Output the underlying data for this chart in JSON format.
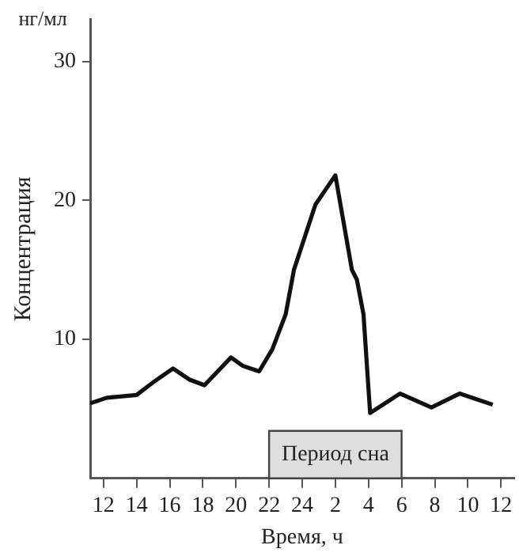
{
  "chart_data": {
    "type": "line",
    "xlabel": "Время, ч",
    "ylabel": "Концентрация",
    "annotations": [
      "нг/мл"
    ],
    "x": [
      "--01-01T11:12",
      "--01-01T12:12",
      "--01-01T14:00",
      "--01-01T15:06",
      "--01-01T16:12",
      "--01-01T17:12",
      "--01-01T18:06",
      "--01-01T19:42",
      "--01-01T20:24",
      "--01-01T21:24",
      "--01-01T22:12",
      "--01-01T23:00",
      "--01-01T23:30",
      "--01-02T00:48",
      "--01-02T02:00",
      "--01-02T03:00",
      "--01-02T03:18",
      "--01-02T03:42",
      "--01-02T03:54",
      "--01-02T04:06",
      "--01-02T05:54",
      "--01-02T07:48",
      "--01-02T09:30",
      "--01-02T11:30"
    ],
    "series": [
      {
        "color": "#111111",
        "values": [
          5.4,
          5.8,
          6,
          7,
          7.9,
          7.1,
          6.7,
          8.7,
          8.1,
          7.7,
          9.3,
          11.8,
          15,
          19.7,
          21.8,
          15,
          14.3,
          11.8,
          8.2,
          4.7,
          6.1,
          5.1,
          6.1,
          5.3
        ]
      }
    ],
    "xlim": [
      "--01-01T11:12",
      "--01-02T12:48"
    ],
    "ylim": [
      0,
      33
    ],
    "xticks": [
      {
        "value": "--01-01T12:00",
        "label": "12"
      },
      {
        "value": "--01-01T14:00",
        "label": "14"
      },
      {
        "value": "--01-01T16:00",
        "label": "16"
      },
      {
        "value": "--01-01T18:00",
        "label": "18"
      },
      {
        "value": "--01-01T20:00",
        "label": "20"
      },
      {
        "value": "--01-01T22:00",
        "label": "22"
      },
      {
        "value": "--01-02T00:00",
        "label": "24"
      },
      {
        "value": "--01-02T02:00",
        "label": "2"
      },
      {
        "value": "--01-02T04:00",
        "label": "4"
      },
      {
        "value": "--01-02T06:00",
        "label": "6"
      },
      {
        "value": "--01-02T08:00",
        "label": "8"
      },
      {
        "value": "--01-02T10:00",
        "label": "10"
      },
      {
        "value": "--01-02T12:00",
        "label": "12"
      }
    ],
    "yticks": [
      10,
      20,
      30
    ],
    "bands": [
      {
        "axis": "x",
        "from": "--01-01T22:00",
        "to": "--01-02T06:00",
        "label": "Период сна",
        "color": "#dedede"
      }
    ],
    "grid": false,
    "legend": false,
    "marker": "none",
    "line_style": "solid"
  }
}
